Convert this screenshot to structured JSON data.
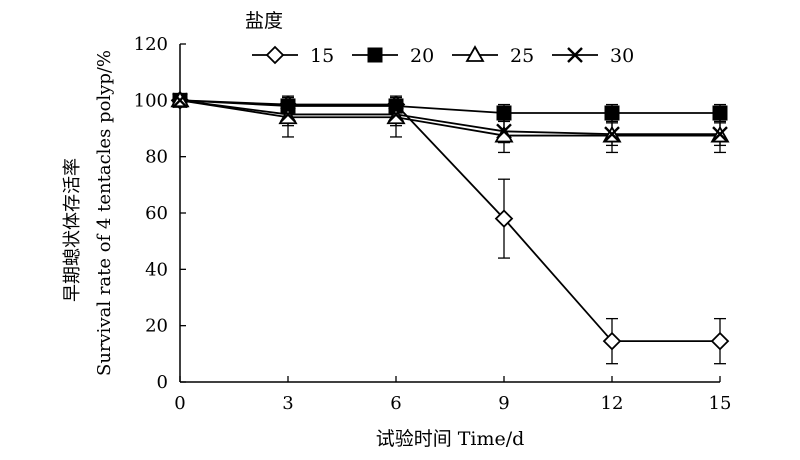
{
  "chart_data": {
    "type": "line",
    "xlabel": "试验时间 Time/d",
    "ylabel_line1": "早期螅状体存活率",
    "ylabel_line2": "Survival rate of 4 tentacles polyp/%",
    "x_ticks": [
      0,
      3,
      6,
      9,
      12,
      15
    ],
    "y_ticks": [
      0,
      20,
      40,
      60,
      80,
      100,
      120
    ],
    "xlim": [
      0,
      15
    ],
    "ylim": [
      0,
      120
    ],
    "grid": false,
    "legend_title": "盐度",
    "legend_position": "top",
    "x": [
      0,
      3,
      6,
      9,
      12,
      15
    ],
    "series": [
      {
        "name": "15",
        "marker": "diamond-open",
        "values": [
          100,
          98.5,
          98.5,
          58,
          14.5,
          14.5
        ],
        "error": [
          0,
          3,
          3,
          14,
          8,
          8
        ]
      },
      {
        "name": "20",
        "marker": "square-filled",
        "values": [
          100,
          98,
          98,
          95.5,
          95.5,
          95.5
        ],
        "error": [
          0,
          2,
          2,
          3,
          3,
          3
        ]
      },
      {
        "name": "25",
        "marker": "triangle-open",
        "values": [
          100,
          94,
          94,
          87.5,
          87.5,
          87.5
        ],
        "error": [
          0,
          7,
          7,
          6,
          6,
          6
        ]
      },
      {
        "name": "30",
        "marker": "x",
        "values": [
          100,
          95,
          95,
          89,
          88,
          88
        ],
        "error": [
          0,
          4,
          4,
          4,
          4,
          4
        ]
      }
    ]
  }
}
